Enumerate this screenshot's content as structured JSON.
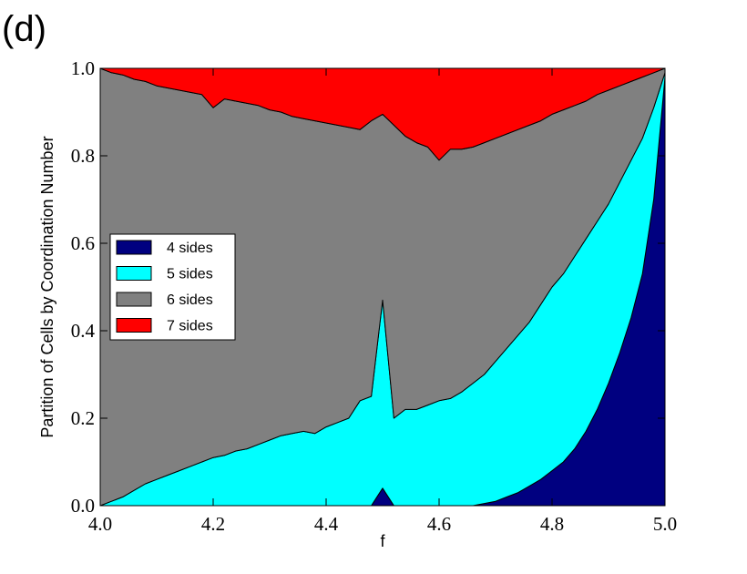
{
  "panel_label": "(d)",
  "chart_data": {
    "type": "stacked_area",
    "x_label": "f",
    "y_label": "Partition of Cells by Coordination Number",
    "x": [
      4.0,
      4.02,
      4.04,
      4.06,
      4.08,
      4.1,
      4.12,
      4.14,
      4.16,
      4.18,
      4.2,
      4.22,
      4.24,
      4.26,
      4.28,
      4.3,
      4.32,
      4.34,
      4.36,
      4.38,
      4.4,
      4.42,
      4.44,
      4.46,
      4.48,
      4.5,
      4.52,
      4.54,
      4.56,
      4.58,
      4.6,
      4.62,
      4.64,
      4.66,
      4.68,
      4.7,
      4.72,
      4.74,
      4.76,
      4.78,
      4.8,
      4.82,
      4.84,
      4.86,
      4.88,
      4.9,
      4.92,
      4.94,
      4.96,
      4.98,
      5.0
    ],
    "series": [
      {
        "name": "4 sides",
        "color": "#000080",
        "values": [
          0,
          0,
          0,
          0,
          0,
          0,
          0,
          0,
          0,
          0,
          0,
          0,
          0,
          0,
          0,
          0,
          0,
          0,
          0,
          0,
          0,
          0,
          0,
          0,
          0,
          0.04,
          0,
          0,
          0,
          0,
          0,
          0,
          0,
          0,
          0.005,
          0.01,
          0.02,
          0.03,
          0.045,
          0.06,
          0.08,
          0.1,
          0.13,
          0.17,
          0.22,
          0.28,
          0.35,
          0.43,
          0.53,
          0.7,
          0.98
        ]
      },
      {
        "name": "5 sides",
        "color": "#00ffff",
        "values": [
          0,
          0.01,
          0.02,
          0.035,
          0.05,
          0.06,
          0.07,
          0.08,
          0.09,
          0.1,
          0.11,
          0.115,
          0.125,
          0.13,
          0.14,
          0.15,
          0.16,
          0.165,
          0.17,
          0.165,
          0.18,
          0.19,
          0.2,
          0.24,
          0.25,
          0.43,
          0.2,
          0.22,
          0.22,
          0.23,
          0.24,
          0.245,
          0.26,
          0.28,
          0.295,
          0.32,
          0.34,
          0.36,
          0.375,
          0.4,
          0.42,
          0.43,
          0.44,
          0.44,
          0.43,
          0.41,
          0.39,
          0.36,
          0.31,
          0.21,
          0.01
        ]
      },
      {
        "name": "6 sides",
        "color": "#808080",
        "values": [
          1.0,
          0.98,
          0.965,
          0.94,
          0.92,
          0.9,
          0.885,
          0.87,
          0.855,
          0.84,
          0.8,
          0.815,
          0.8,
          0.79,
          0.775,
          0.755,
          0.74,
          0.725,
          0.715,
          0.715,
          0.695,
          0.68,
          0.665,
          0.62,
          0.63,
          0.425,
          0.67,
          0.625,
          0.61,
          0.59,
          0.55,
          0.57,
          0.555,
          0.54,
          0.53,
          0.51,
          0.49,
          0.47,
          0.45,
          0.42,
          0.395,
          0.375,
          0.345,
          0.315,
          0.29,
          0.26,
          0.22,
          0.18,
          0.14,
          0.08,
          0.01
        ]
      },
      {
        "name": "7 sides",
        "color": "#ff0000",
        "values": [
          0,
          0.01,
          0.015,
          0.025,
          0.03,
          0.04,
          0.045,
          0.05,
          0.055,
          0.06,
          0.09,
          0.07,
          0.075,
          0.08,
          0.085,
          0.095,
          0.1,
          0.11,
          0.115,
          0.12,
          0.125,
          0.13,
          0.135,
          0.14,
          0.12,
          0.105,
          0.13,
          0.155,
          0.17,
          0.18,
          0.21,
          0.185,
          0.185,
          0.18,
          0.17,
          0.16,
          0.15,
          0.14,
          0.13,
          0.12,
          0.105,
          0.095,
          0.085,
          0.075,
          0.06,
          0.05,
          0.04,
          0.03,
          0.02,
          0.01,
          0
        ]
      }
    ],
    "xlim": [
      4.0,
      5.0
    ],
    "xticks": [
      {
        "value": 4.0,
        "label": "4.0"
      },
      4.2,
      4.4,
      4.6,
      4.8,
      {
        "value": 5.0,
        "label": "5.0"
      }
    ],
    "ylim": [
      0.0,
      1.0
    ],
    "yticks": [
      {
        "value": 0.0,
        "label": "0.0"
      },
      0.2,
      0.4,
      0.6,
      0.8,
      {
        "value": 1.0,
        "label": "1.0"
      }
    ],
    "legend": "left"
  }
}
